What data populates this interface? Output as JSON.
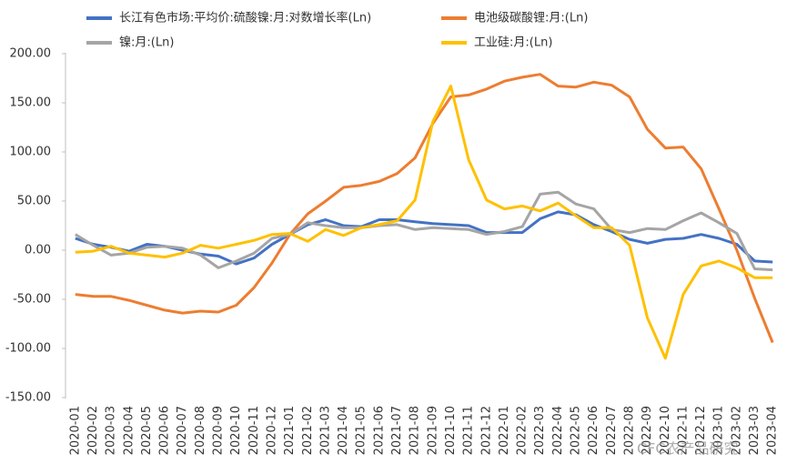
{
  "chart_data": {
    "type": "line",
    "categories": [
      "2020-01",
      "2020-02",
      "2020-03",
      "2020-04",
      "2020-05",
      "2020-06",
      "2020-07",
      "2020-08",
      "2020-09",
      "2020-10",
      "2020-11",
      "2020-12",
      "2021-01",
      "2021-02",
      "2021-03",
      "2021-04",
      "2021-05",
      "2021-06",
      "2021-07",
      "2021-08",
      "2021-09",
      "2021-10",
      "2021-11",
      "2021-12",
      "2022-01",
      "2022-02",
      "2022-03",
      "2022-04",
      "2022-05",
      "2022-06",
      "2022-07",
      "2022-08",
      "2022-09",
      "2022-10",
      "2022-11",
      "2022-12",
      "2023-01",
      "2023-02",
      "2023-03",
      "2023-04"
    ],
    "series": [
      {
        "name": "长江有色市场:平均价:硫酸镍:月:对数增长率(Ln)",
        "color": "#4472c4",
        "values": [
          12,
          6,
          3,
          -1,
          6,
          4,
          0,
          -4,
          -6,
          -14,
          -8,
          6,
          16,
          26,
          31,
          25,
          24,
          31,
          31,
          29,
          27,
          26,
          25,
          18,
          18,
          18,
          32,
          39,
          36,
          26,
          19,
          11,
          7,
          11,
          12,
          16,
          12,
          6,
          -11,
          -12
        ]
      },
      {
        "name": "电池级碳酸锂:月:(Ln)",
        "color": "#ed7d31",
        "values": [
          -45,
          -47,
          -47,
          -51,
          -56,
          -61,
          -64,
          -62,
          -63,
          -56,
          -38,
          -13,
          16,
          37,
          50,
          64,
          66,
          70,
          78,
          94,
          129,
          156,
          158,
          164,
          172,
          176,
          179,
          167,
          166,
          171,
          168,
          156,
          123,
          104,
          105,
          83,
          42,
          0,
          -49,
          -94
        ]
      },
      {
        "name": "镍:月:(Ln)",
        "color": "#a5a5a5",
        "values": [
          16,
          5,
          -5,
          -3,
          3,
          4,
          2,
          -5,
          -18,
          -11,
          -3,
          12,
          16,
          28,
          25,
          23,
          23,
          25,
          26,
          21,
          23,
          22,
          21,
          16,
          19,
          24,
          57,
          59,
          47,
          42,
          21,
          18,
          22,
          21,
          30,
          38,
          28,
          17,
          -19,
          -20
        ]
      },
      {
        "name": "工业硅:月:(Ln)",
        "color": "#ffc000",
        "values": [
          -2,
          -1,
          4,
          -3,
          -5,
          -7,
          -3,
          5,
          2,
          6,
          10,
          16,
          17,
          9,
          21,
          15,
          23,
          26,
          30,
          51,
          131,
          167,
          92,
          51,
          42,
          45,
          40,
          48,
          35,
          23,
          23,
          5,
          -69,
          -110,
          -45,
          -16,
          -11,
          -18,
          -28,
          -28
        ]
      }
    ],
    "ylim": [
      -150,
      200
    ],
    "yticks": [
      {
        "value": -150,
        "label": "-150.00"
      },
      {
        "value": -100,
        "label": "-100.00"
      },
      {
        "value": -50,
        "label": "-50.00"
      },
      {
        "value": 0,
        "label": "0.00"
      },
      {
        "value": 50,
        "label": "50.00"
      },
      {
        "value": 100,
        "label": "100.00"
      },
      {
        "value": 150,
        "label": "150.00"
      },
      {
        "value": 200,
        "label": "200.00"
      }
    ],
    "grid": false,
    "legend": "top",
    "watermark": "CFC农产品研究"
  }
}
